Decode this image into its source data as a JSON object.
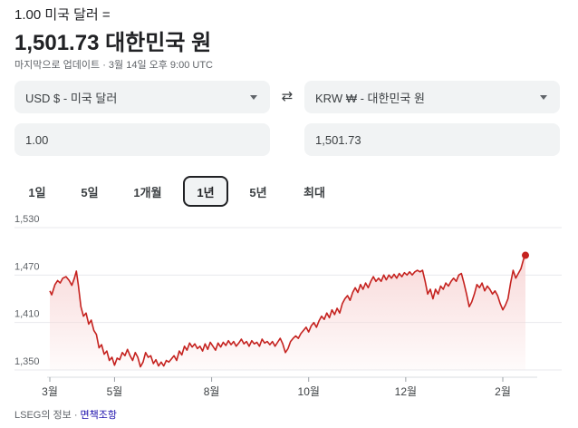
{
  "header": {
    "subtitle": "1.00 미국 달러 =",
    "rate": "1,501.73 대한민국 원",
    "updated": "마지막으로 업데이트 · 3월 14일 오후 9:00 UTC"
  },
  "converter": {
    "from_currency": "USD $ - 미국 달러",
    "to_currency": "KRW ₩ - 대한민국 원",
    "from_amount": "1.00",
    "to_amount": "1,501.73",
    "swap_icon": "⇄"
  },
  "ranges": [
    {
      "label": "1일"
    },
    {
      "label": "5일"
    },
    {
      "label": "1개월"
    },
    {
      "label": "1년"
    },
    {
      "label": "5년"
    },
    {
      "label": "최대"
    }
  ],
  "active_range": "1년",
  "colors": {
    "line": "#c5221f",
    "fill": "#f8d7d7"
  },
  "chart_data": {
    "type": "area",
    "y_ticks": [
      "1,530",
      "1,470",
      "1,410",
      "1,350"
    ],
    "ylim": [
      1350,
      1530
    ],
    "x_labels": [
      "3월",
      "5월",
      "8월",
      "10월",
      "12월",
      "2월"
    ],
    "x_label_positions": [
      0,
      10,
      25,
      40,
      55,
      70
    ],
    "grid": true,
    "points": [
      [
        0,
        1450
      ],
      [
        0.3,
        1445
      ],
      [
        0.8,
        1458
      ],
      [
        1.2,
        1463
      ],
      [
        1.6,
        1460
      ],
      [
        2.0,
        1466
      ],
      [
        2.5,
        1468
      ],
      [
        3.0,
        1463
      ],
      [
        3.4,
        1457
      ],
      [
        3.8,
        1466
      ],
      [
        4.1,
        1475
      ],
      [
        4.4,
        1458
      ],
      [
        4.8,
        1430
      ],
      [
        5.2,
        1418
      ],
      [
        5.6,
        1422
      ],
      [
        6.0,
        1408
      ],
      [
        6.4,
        1413
      ],
      [
        6.8,
        1400
      ],
      [
        7.2,
        1395
      ],
      [
        7.6,
        1378
      ],
      [
        8.0,
        1382
      ],
      [
        8.4,
        1370
      ],
      [
        8.8,
        1374
      ],
      [
        9.2,
        1362
      ],
      [
        9.6,
        1366
      ],
      [
        10.0,
        1356
      ],
      [
        10.4,
        1365
      ],
      [
        10.8,
        1363
      ],
      [
        11.2,
        1372
      ],
      [
        11.6,
        1368
      ],
      [
        12.0,
        1376
      ],
      [
        12.4,
        1368
      ],
      [
        12.8,
        1362
      ],
      [
        13.2,
        1372
      ],
      [
        13.6,
        1366
      ],
      [
        14.0,
        1354
      ],
      [
        14.4,
        1360
      ],
      [
        14.8,
        1372
      ],
      [
        15.2,
        1366
      ],
      [
        15.6,
        1368
      ],
      [
        16.0,
        1358
      ],
      [
        16.4,
        1363
      ],
      [
        16.8,
        1355
      ],
      [
        17.2,
        1360
      ],
      [
        17.6,
        1355
      ],
      [
        18.0,
        1362
      ],
      [
        18.4,
        1360
      ],
      [
        18.8,
        1364
      ],
      [
        19.2,
        1368
      ],
      [
        19.6,
        1362
      ],
      [
        20.0,
        1374
      ],
      [
        20.4,
        1369
      ],
      [
        20.8,
        1380
      ],
      [
        21.2,
        1375
      ],
      [
        21.6,
        1384
      ],
      [
        22.0,
        1379
      ],
      [
        22.4,
        1383
      ],
      [
        22.8,
        1377
      ],
      [
        23.2,
        1380
      ],
      [
        23.6,
        1374
      ],
      [
        24.0,
        1383
      ],
      [
        24.4,
        1376
      ],
      [
        24.8,
        1385
      ],
      [
        25.2,
        1380
      ],
      [
        25.6,
        1375
      ],
      [
        26.0,
        1384
      ],
      [
        26.4,
        1379
      ],
      [
        26.8,
        1385
      ],
      [
        27.2,
        1381
      ],
      [
        27.6,
        1387
      ],
      [
        28.0,
        1382
      ],
      [
        28.4,
        1386
      ],
      [
        28.8,
        1380
      ],
      [
        29.2,
        1384
      ],
      [
        29.6,
        1389
      ],
      [
        30.0,
        1383
      ],
      [
        30.4,
        1386
      ],
      [
        30.8,
        1380
      ],
      [
        31.2,
        1387
      ],
      [
        31.6,
        1383
      ],
      [
        32.0,
        1385
      ],
      [
        32.4,
        1380
      ],
      [
        32.8,
        1389
      ],
      [
        33.2,
        1384
      ],
      [
        33.6,
        1386
      ],
      [
        34.0,
        1382
      ],
      [
        34.4,
        1386
      ],
      [
        34.8,
        1380
      ],
      [
        35.2,
        1385
      ],
      [
        35.6,
        1390
      ],
      [
        36.0,
        1383
      ],
      [
        36.4,
        1372
      ],
      [
        36.8,
        1377
      ],
      [
        37.2,
        1386
      ],
      [
        37.6,
        1390
      ],
      [
        38.0,
        1393
      ],
      [
        38.4,
        1390
      ],
      [
        38.8,
        1396
      ],
      [
        39.2,
        1400
      ],
      [
        39.6,
        1404
      ],
      [
        40.0,
        1398
      ],
      [
        40.4,
        1406
      ],
      [
        40.8,
        1410
      ],
      [
        41.2,
        1404
      ],
      [
        41.6,
        1412
      ],
      [
        42.0,
        1418
      ],
      [
        42.4,
        1414
      ],
      [
        42.8,
        1422
      ],
      [
        43.2,
        1416
      ],
      [
        43.6,
        1426
      ],
      [
        44.0,
        1420
      ],
      [
        44.4,
        1428
      ],
      [
        44.8,
        1422
      ],
      [
        45.2,
        1434
      ],
      [
        45.6,
        1440
      ],
      [
        46.0,
        1444
      ],
      [
        46.4,
        1438
      ],
      [
        46.8,
        1448
      ],
      [
        47.2,
        1454
      ],
      [
        47.6,
        1448
      ],
      [
        48.0,
        1458
      ],
      [
        48.4,
        1452
      ],
      [
        48.8,
        1460
      ],
      [
        49.2,
        1454
      ],
      [
        49.6,
        1462
      ],
      [
        50.0,
        1468
      ],
      [
        50.4,
        1462
      ],
      [
        50.8,
        1466
      ],
      [
        51.2,
        1462
      ],
      [
        51.6,
        1470
      ],
      [
        52.0,
        1464
      ],
      [
        52.4,
        1470
      ],
      [
        52.8,
        1466
      ],
      [
        53.2,
        1471
      ],
      [
        53.6,
        1466
      ],
      [
        54.0,
        1472
      ],
      [
        54.4,
        1468
      ],
      [
        54.8,
        1473
      ],
      [
        55.2,
        1470
      ],
      [
        55.6,
        1474
      ],
      [
        56.0,
        1470
      ],
      [
        56.4,
        1474
      ],
      [
        56.8,
        1476
      ],
      [
        57.2,
        1474
      ],
      [
        57.6,
        1476
      ],
      [
        58.0,
        1462
      ],
      [
        58.4,
        1446
      ],
      [
        58.8,
        1452
      ],
      [
        59.2,
        1440
      ],
      [
        59.6,
        1452
      ],
      [
        60.0,
        1446
      ],
      [
        60.4,
        1456
      ],
      [
        60.8,
        1452
      ],
      [
        61.2,
        1460
      ],
      [
        61.6,
        1456
      ],
      [
        62.0,
        1462
      ],
      [
        62.4,
        1466
      ],
      [
        62.8,
        1462
      ],
      [
        63.2,
        1470
      ],
      [
        63.6,
        1472
      ],
      [
        64.0,
        1460
      ],
      [
        64.4,
        1446
      ],
      [
        64.8,
        1430
      ],
      [
        65.2,
        1436
      ],
      [
        65.6,
        1446
      ],
      [
        66.0,
        1458
      ],
      [
        66.4,
        1454
      ],
      [
        66.8,
        1460
      ],
      [
        67.2,
        1450
      ],
      [
        67.6,
        1456
      ],
      [
        68.0,
        1452
      ],
      [
        68.4,
        1446
      ],
      [
        68.8,
        1450
      ],
      [
        69.2,
        1444
      ],
      [
        69.6,
        1434
      ],
      [
        70.0,
        1426
      ],
      [
        70.4,
        1432
      ],
      [
        70.8,
        1440
      ],
      [
        71.2,
        1460
      ],
      [
        71.6,
        1476
      ],
      [
        72.0,
        1466
      ],
      [
        72.4,
        1472
      ],
      [
        72.8,
        1478
      ],
      [
        73.2,
        1490
      ],
      [
        73.5,
        1495
      ]
    ],
    "x_max": 78
  },
  "footer": {
    "source": "LSEG의 정보 · ",
    "disclaimer": "면책조항"
  }
}
